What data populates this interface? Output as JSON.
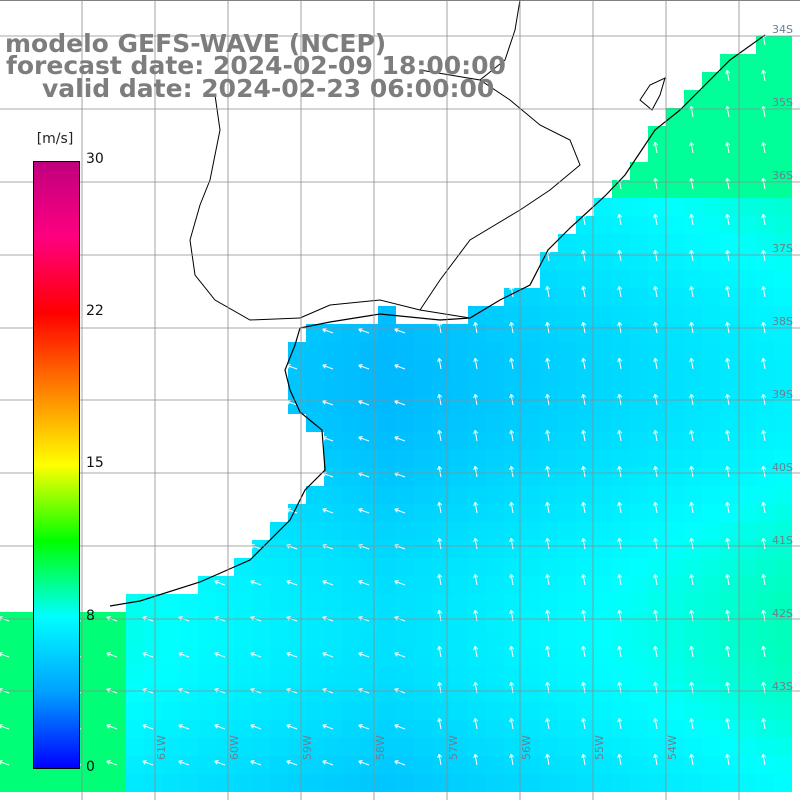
{
  "title": {
    "line1": "modelo GEFS-WAVE (NCEP)",
    "line2": "forecast date: 2024-02-09 18:00:00",
    "line3": "valid date: 2024-02-23 06:00:00"
  },
  "colorbar": {
    "unit": "[m/s]",
    "ticks": [
      "30",
      "22",
      "15",
      "8",
      "0"
    ],
    "stops": [
      "#0000ff",
      "#00a0ff",
      "#00ffff",
      "#00ff00",
      "#ffff00",
      "#ff8000",
      "#ff0000",
      "#ff0080",
      "#c0007f"
    ]
  },
  "grid": {
    "lat_labels": [
      "34S",
      "35S",
      "36S",
      "37S",
      "38S",
      "39S",
      "40S",
      "41S",
      "42S",
      "43S"
    ],
    "lon_labels": [
      "61W",
      "60W",
      "59W",
      "58W",
      "57W",
      "56W",
      "55W",
      "54W"
    ]
  },
  "colors": {
    "land": "#ffffff",
    "coast": "#000000",
    "grid": "#8c8c8c",
    "arrow": "#ffffff"
  }
}
